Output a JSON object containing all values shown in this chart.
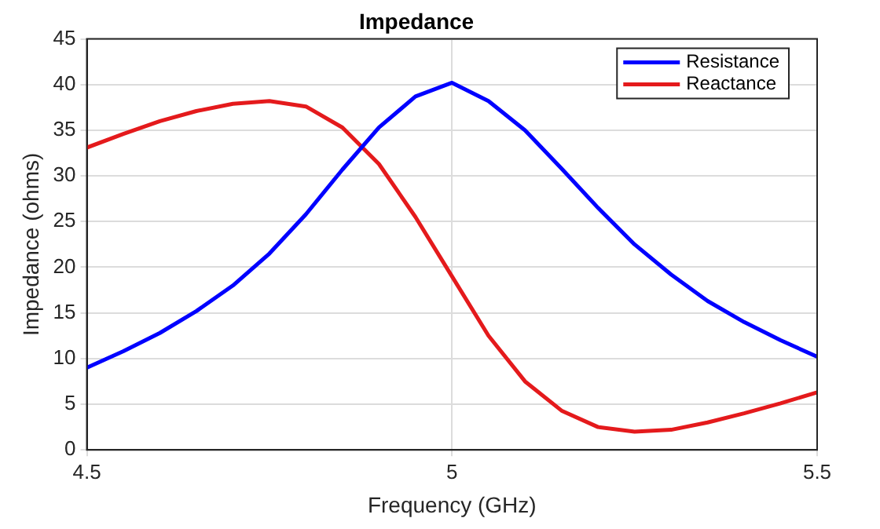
{
  "chart_data": {
    "type": "line",
    "title": "Impedance",
    "xlabel": "Frequency (GHz)",
    "ylabel": "Impedance (ohms)",
    "x": [
      4.5,
      4.55,
      4.6,
      4.65,
      4.7,
      4.75,
      4.8,
      4.85,
      4.9,
      4.95,
      5.0,
      5.05,
      5.1,
      5.15,
      5.2,
      5.25,
      5.3,
      5.35,
      5.4,
      5.45,
      5.5
    ],
    "series": [
      {
        "name": "Resistance",
        "color": "#0000ff",
        "values": [
          9,
          10.8,
          12.8,
          15.2,
          18,
          21.5,
          25.8,
          30.7,
          35.3,
          38.7,
          40.2,
          38.2,
          35,
          30.8,
          26.5,
          22.5,
          19.2,
          16.3,
          14,
          12,
          10.2
        ]
      },
      {
        "name": "Reactance",
        "color": "#e41a1c",
        "values": [
          33.1,
          34.6,
          36,
          37.1,
          37.9,
          38.2,
          37.6,
          35.3,
          31.3,
          25.5,
          19,
          12.5,
          7.5,
          4.3,
          2.5,
          2,
          2.2,
          3,
          4,
          5.1,
          6.3
        ]
      }
    ],
    "xlim": [
      4.5,
      5.5
    ],
    "xticks": [
      4.5,
      5,
      5.5
    ],
    "ylim": [
      0,
      45
    ],
    "yticks": [
      0,
      5,
      10,
      15,
      20,
      25,
      30,
      35,
      40,
      45
    ],
    "grid": true,
    "legend": "top right",
    "marker": "none",
    "line_style": "solid"
  }
}
